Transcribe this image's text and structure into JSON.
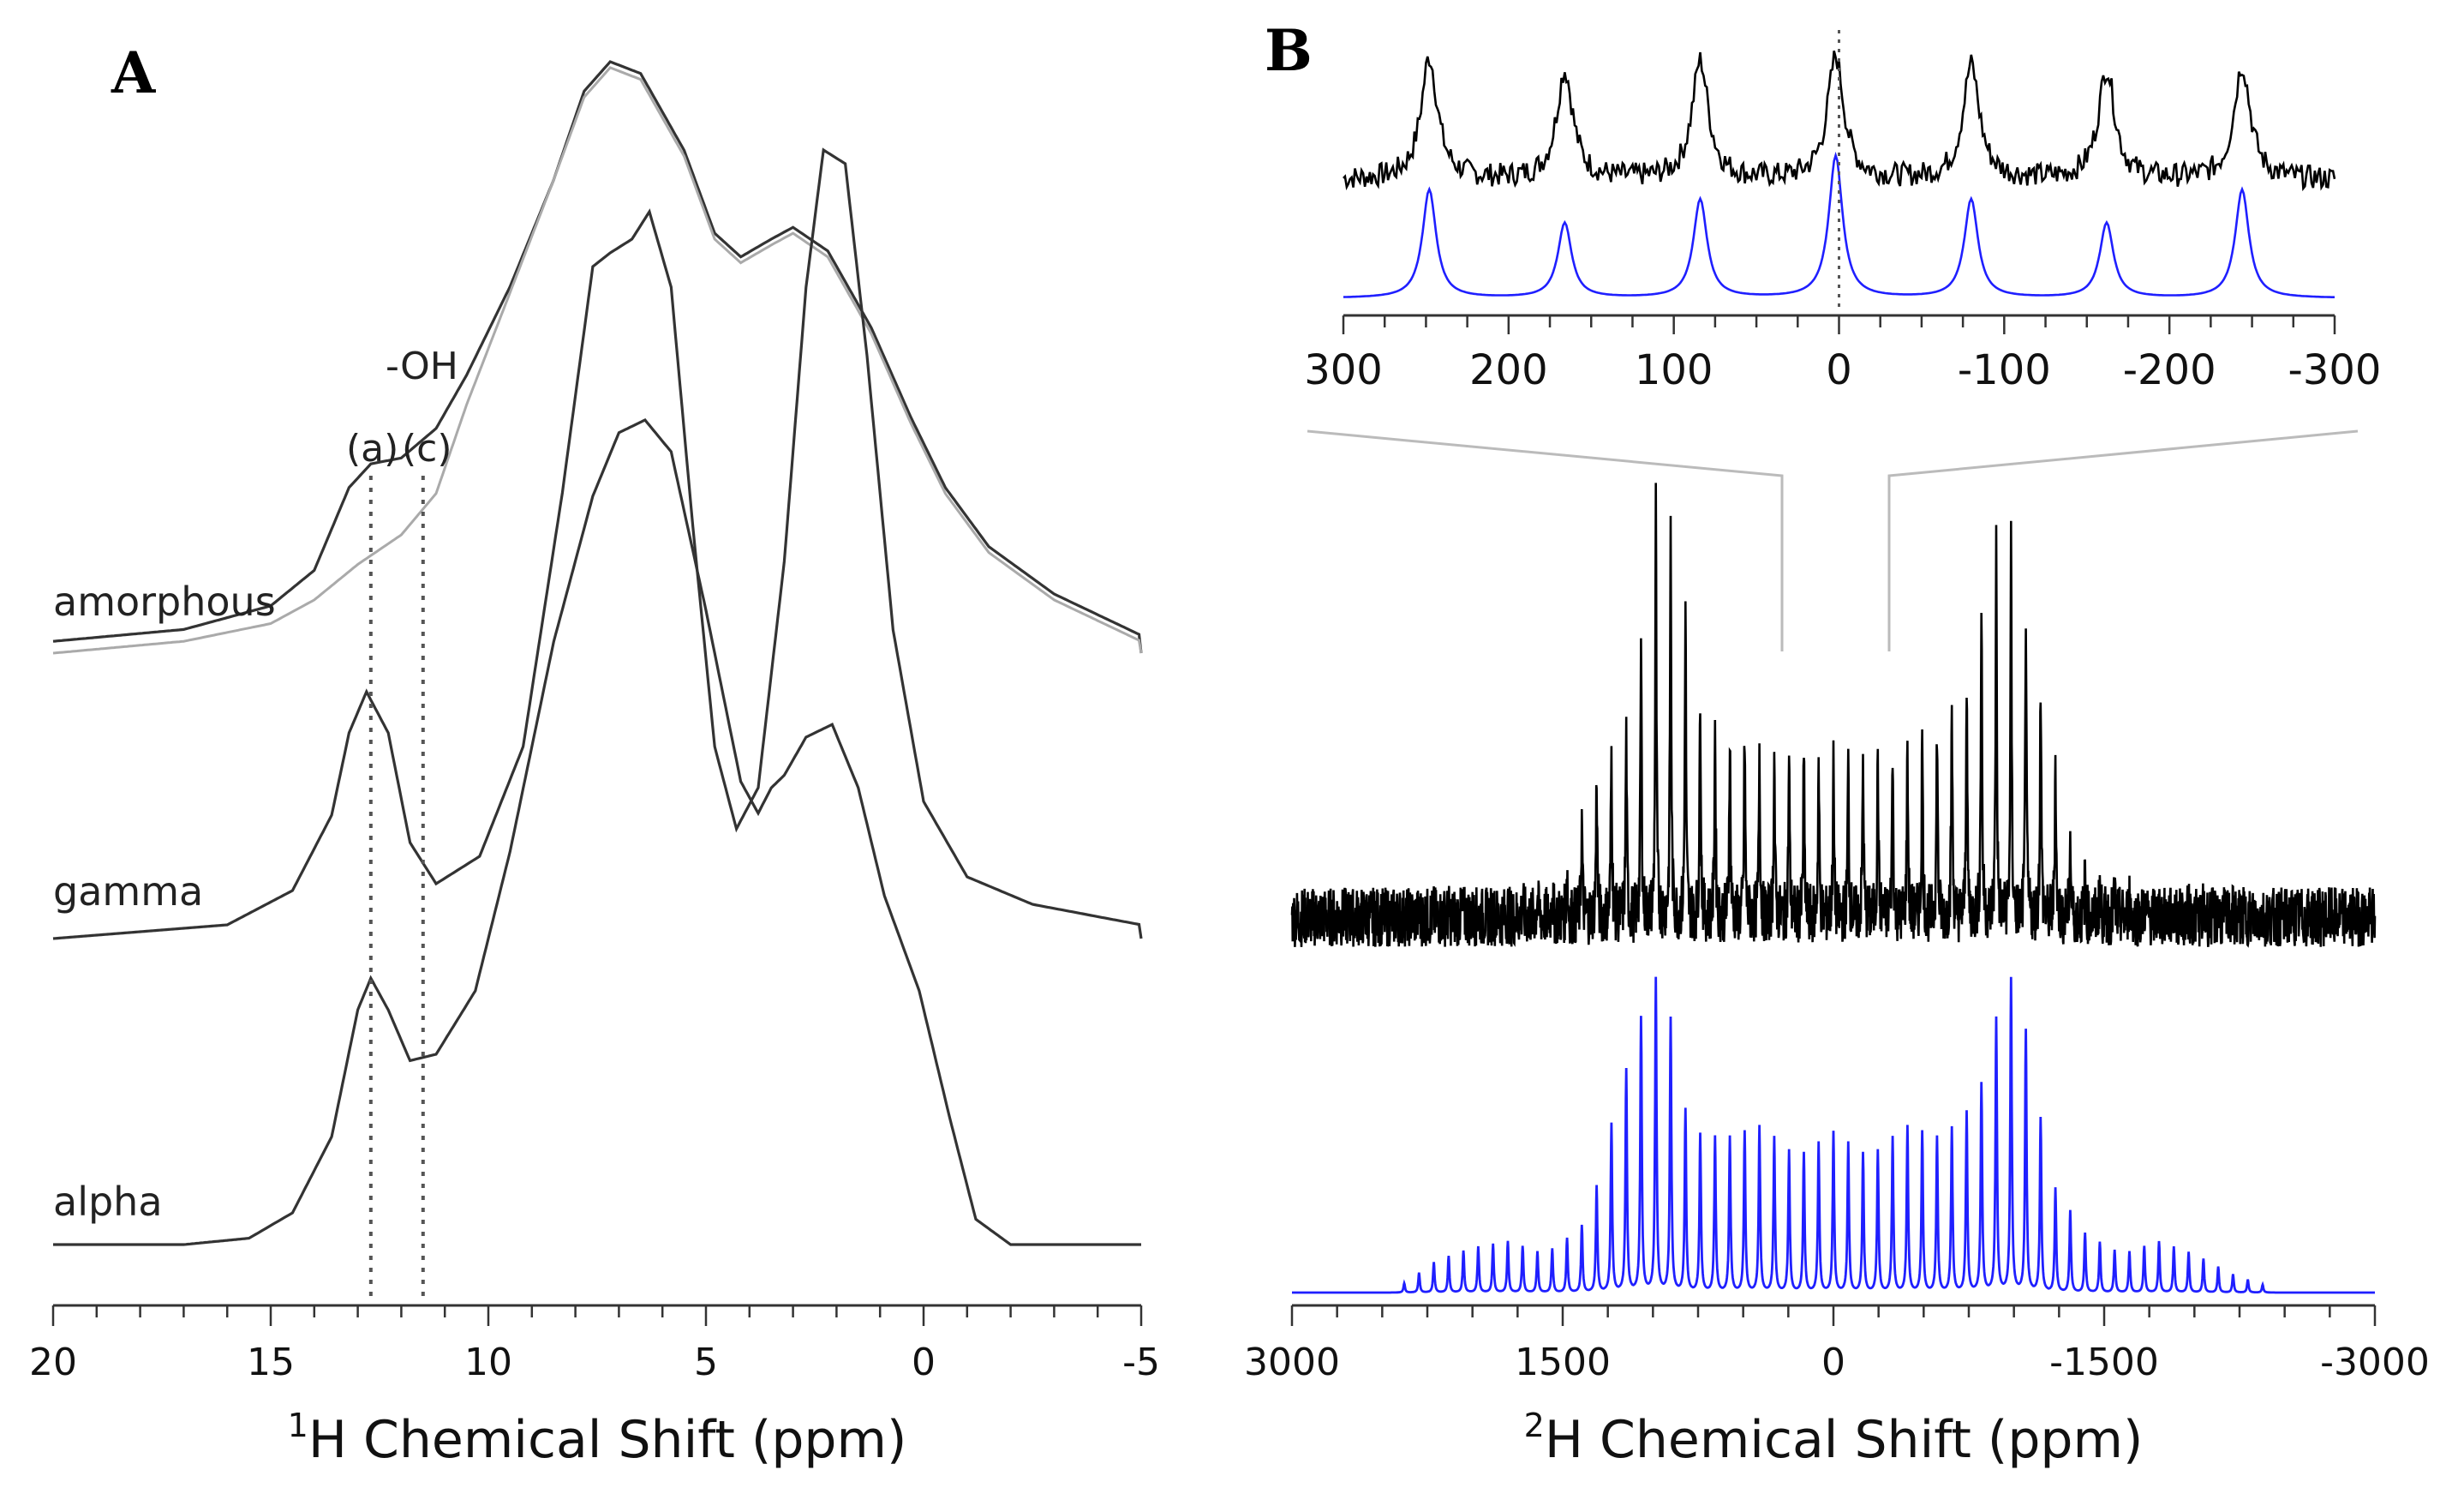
{
  "chart_data": [
    {
      "panel_label": "A",
      "type": "line",
      "xlabel_nucleus": "1",
      "xlabel_symbol": "H",
      "xlabel_rest": " Chemical Shift (ppm)",
      "xlim": [
        20,
        -5
      ],
      "xticks": [
        "20",
        "15",
        "10",
        "5",
        "0",
        "-5"
      ],
      "annotation_group": "-OH",
      "annotation_a": "(a)",
      "annotation_c": "(c)",
      "reference_lines_ppm": [
        12.7,
        11.5
      ],
      "series": [
        {
          "name": "amorphous",
          "color": "#333333",
          "points": [
            [
              20,
              0.02
            ],
            [
              17,
              0.04
            ],
            [
              15,
              0.08
            ],
            [
              14,
              0.14
            ],
            [
              13.2,
              0.28
            ],
            [
              12.7,
              0.32
            ],
            [
              12,
              0.33
            ],
            [
              11.2,
              0.38
            ],
            [
              10.5,
              0.47
            ],
            [
              9.5,
              0.62
            ],
            [
              8.5,
              0.8
            ],
            [
              7.8,
              0.95
            ],
            [
              7.2,
              1.0
            ],
            [
              6.5,
              0.98
            ],
            [
              5.5,
              0.85
            ],
            [
              4.8,
              0.71
            ],
            [
              4.2,
              0.67
            ],
            [
              3.5,
              0.7
            ],
            [
              3.0,
              0.72
            ],
            [
              2.2,
              0.68
            ],
            [
              1.2,
              0.55
            ],
            [
              0.3,
              0.4
            ],
            [
              -0.5,
              0.28
            ],
            [
              -1.5,
              0.18
            ],
            [
              -3,
              0.1
            ],
            [
              -5,
              0.03
            ]
          ]
        },
        {
          "name": "",
          "color": "#aaaaaa",
          "points": [
            [
              20,
              0.0
            ],
            [
              17,
              0.02
            ],
            [
              15,
              0.05
            ],
            [
              14,
              0.09
            ],
            [
              13,
              0.15
            ],
            [
              12,
              0.2
            ],
            [
              11.2,
              0.27
            ],
            [
              10.5,
              0.42
            ],
            [
              9.5,
              0.61
            ],
            [
              8.5,
              0.8
            ],
            [
              7.8,
              0.94
            ],
            [
              7.2,
              0.99
            ],
            [
              6.5,
              0.97
            ],
            [
              5.5,
              0.84
            ],
            [
              4.8,
              0.7
            ],
            [
              4.2,
              0.66
            ],
            [
              3.5,
              0.69
            ],
            [
              3.0,
              0.71
            ],
            [
              2.2,
              0.67
            ],
            [
              1.2,
              0.54
            ],
            [
              0.3,
              0.39
            ],
            [
              -0.5,
              0.27
            ],
            [
              -1.5,
              0.17
            ],
            [
              -3,
              0.09
            ],
            [
              -5,
              0.02
            ]
          ]
        },
        {
          "name": "gamma",
          "color": "#333333",
          "points": [
            [
              20,
              0.0
            ],
            [
              16,
              0.02
            ],
            [
              14.5,
              0.07
            ],
            [
              13.6,
              0.18
            ],
            [
              13.2,
              0.3
            ],
            [
              12.8,
              0.36
            ],
            [
              12.3,
              0.3
            ],
            [
              11.8,
              0.14
            ],
            [
              11.2,
              0.08
            ],
            [
              10.2,
              0.12
            ],
            [
              9.2,
              0.28
            ],
            [
              8.3,
              0.65
            ],
            [
              7.6,
              0.98
            ],
            [
              7.2,
              1.0
            ],
            [
              6.7,
              1.02
            ],
            [
              6.3,
              1.06
            ],
            [
              5.8,
              0.95
            ],
            [
              5.3,
              0.6
            ],
            [
              4.8,
              0.28
            ],
            [
              4.3,
              0.16
            ],
            [
              3.8,
              0.22
            ],
            [
              3.2,
              0.55
            ],
            [
              2.7,
              0.95
            ],
            [
              2.3,
              1.15
            ],
            [
              1.8,
              1.13
            ],
            [
              1.3,
              0.85
            ],
            [
              0.7,
              0.45
            ],
            [
              0.0,
              0.2
            ],
            [
              -1,
              0.09
            ],
            [
              -2.5,
              0.05
            ],
            [
              -5,
              0.02
            ]
          ]
        },
        {
          "name": "alpha",
          "color": "#333333",
          "points": [
            [
              20,
              0.0
            ],
            [
              17,
              0.0
            ],
            [
              15.5,
              0.01
            ],
            [
              14.5,
              0.05
            ],
            [
              13.6,
              0.17
            ],
            [
              13.0,
              0.37
            ],
            [
              12.7,
              0.42
            ],
            [
              12.3,
              0.37
            ],
            [
              11.8,
              0.29
            ],
            [
              11.2,
              0.3
            ],
            [
              10.3,
              0.4
            ],
            [
              9.5,
              0.62
            ],
            [
              8.5,
              0.95
            ],
            [
              7.6,
              1.18
            ],
            [
              7.0,
              1.28
            ],
            [
              6.4,
              1.3
            ],
            [
              5.8,
              1.25
            ],
            [
              5.0,
              1.0
            ],
            [
              4.2,
              0.73
            ],
            [
              3.8,
              0.68
            ],
            [
              3.5,
              0.72
            ],
            [
              3.2,
              0.74
            ],
            [
              2.7,
              0.8
            ],
            [
              2.1,
              0.82
            ],
            [
              1.5,
              0.72
            ],
            [
              0.9,
              0.55
            ],
            [
              0.1,
              0.4
            ],
            [
              -0.6,
              0.2
            ],
            [
              -1.2,
              0.04
            ],
            [
              -2,
              0.0
            ],
            [
              -3.5,
              0.0
            ],
            [
              -5,
              0.0
            ]
          ]
        }
      ]
    },
    {
      "panel_label": "B",
      "type": "line",
      "xlabel_nucleus": "2",
      "xlabel_symbol": "H",
      "xlabel_rest": " Chemical Shift (ppm)",
      "xlim": [
        3000,
        -3000
      ],
      "xticks": [
        "3000",
        "1500",
        "0",
        "-1500",
        "-3000"
      ],
      "series": [
        {
          "name": "",
          "color": "#000000",
          "spinning_sidebands_ppm_spacing": 82,
          "profile": [
            [
              2400,
              0.0
            ],
            [
              1800,
              0.02
            ],
            [
              1500,
              0.08
            ],
            [
              1300,
              0.35
            ],
            [
              1100,
              0.45
            ],
            [
              1000,
              0.97
            ],
            [
              900,
              0.9
            ],
            [
              700,
              0.45
            ],
            [
              500,
              0.42
            ],
            [
              300,
              0.38
            ],
            [
              0,
              0.35
            ],
            [
              -300,
              0.38
            ],
            [
              -500,
              0.42
            ],
            [
              -700,
              0.5
            ],
            [
              -900,
              0.88
            ],
            [
              -1000,
              0.85
            ],
            [
              -1200,
              0.45
            ],
            [
              -1350,
              0.1
            ],
            [
              -1800,
              0.02
            ],
            [
              -2400,
              0.0
            ]
          ]
        },
        {
          "name": "",
          "color": "#1f1fff",
          "spinning_sidebands_ppm_spacing": 82,
          "profile": [
            [
              2400,
              0.02
            ],
            [
              2200,
              0.1
            ],
            [
              2000,
              0.14
            ],
            [
              1800,
              0.16
            ],
            [
              1600,
              0.12
            ],
            [
              1400,
              0.2
            ],
            [
              1300,
              0.35
            ],
            [
              1200,
              0.6
            ],
            [
              1100,
              0.78
            ],
            [
              1000,
              1.0
            ],
            [
              900,
              0.85
            ],
            [
              800,
              0.5
            ],
            [
              600,
              0.48
            ],
            [
              400,
              0.52
            ],
            [
              200,
              0.42
            ],
            [
              0,
              0.5
            ],
            [
              -200,
              0.42
            ],
            [
              -400,
              0.52
            ],
            [
              -600,
              0.48
            ],
            [
              -800,
              0.6
            ],
            [
              -900,
              0.85
            ],
            [
              -1000,
              1.0
            ],
            [
              -1100,
              0.72
            ],
            [
              -1200,
              0.35
            ],
            [
              -1400,
              0.18
            ],
            [
              -1600,
              0.12
            ],
            [
              -1800,
              0.16
            ],
            [
              -2000,
              0.12
            ],
            [
              -2200,
              0.06
            ],
            [
              -2400,
              0.02
            ]
          ]
        }
      ],
      "inset": {
        "xlim": [
          300,
          -300
        ],
        "xticks": [
          "300",
          "200",
          "100",
          "0",
          "-100",
          "-200",
          "-300"
        ],
        "reference_line_ppm": 0,
        "peaks_ppm": [
          248,
          166,
          84,
          2,
          -80,
          -162,
          -244
        ],
        "series": [
          {
            "name": "",
            "color": "#000000",
            "peak_heights": [
              0.62,
              0.55,
              0.6,
              0.62,
              0.58,
              0.56,
              0.58
            ]
          },
          {
            "name": "",
            "color": "#1f1fff",
            "peak_heights": [
              0.55,
              0.38,
              0.5,
              0.72,
              0.5,
              0.38,
              0.55
            ]
          }
        ]
      }
    }
  ]
}
